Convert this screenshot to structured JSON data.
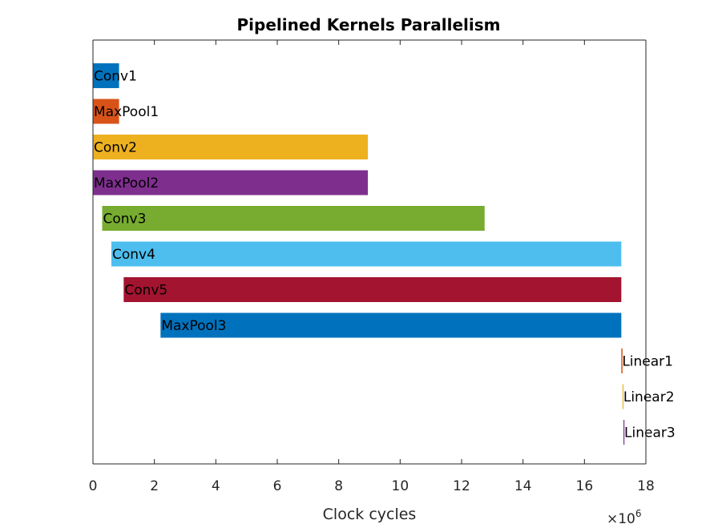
{
  "chart_data": {
    "type": "bar",
    "orientation": "horizontal-gantt",
    "title": "Pipelined Kernels Parallelism",
    "xlabel": "Clock cycles",
    "ylabel": "",
    "x_exponent_label": "×10",
    "x_exponent_power": "6",
    "xlim": [
      0,
      18
    ],
    "xticks": [
      0,
      2,
      4,
      6,
      8,
      10,
      12,
      14,
      16,
      18
    ],
    "grid": false,
    "series": [
      {
        "name": "Conv1",
        "start": 0.0,
        "end": 0.85,
        "color": "#0072BD"
      },
      {
        "name": "MaxPool1",
        "start": 0.0,
        "end": 0.85,
        "color": "#D95319"
      },
      {
        "name": "Conv2",
        "start": 0.0,
        "end": 8.95,
        "color": "#EDB120"
      },
      {
        "name": "MaxPool2",
        "start": 0.0,
        "end": 8.95,
        "color": "#7E2F8E"
      },
      {
        "name": "Conv3",
        "start": 0.3,
        "end": 12.75,
        "color": "#77AC30"
      },
      {
        "name": "Conv4",
        "start": 0.6,
        "end": 17.2,
        "color": "#4DBEEE"
      },
      {
        "name": "Conv5",
        "start": 1.0,
        "end": 17.2,
        "color": "#A2142F"
      },
      {
        "name": "MaxPool3",
        "start": 2.2,
        "end": 17.2,
        "color": "#0072BD"
      },
      {
        "name": "Linear1",
        "start": 17.2,
        "end": 17.24,
        "color": "#D95319"
      },
      {
        "name": "Linear2",
        "start": 17.24,
        "end": 17.27,
        "color": "#EDB120"
      },
      {
        "name": "Linear3",
        "start": 17.27,
        "end": 17.29,
        "color": "#7E2F8E"
      }
    ]
  }
}
